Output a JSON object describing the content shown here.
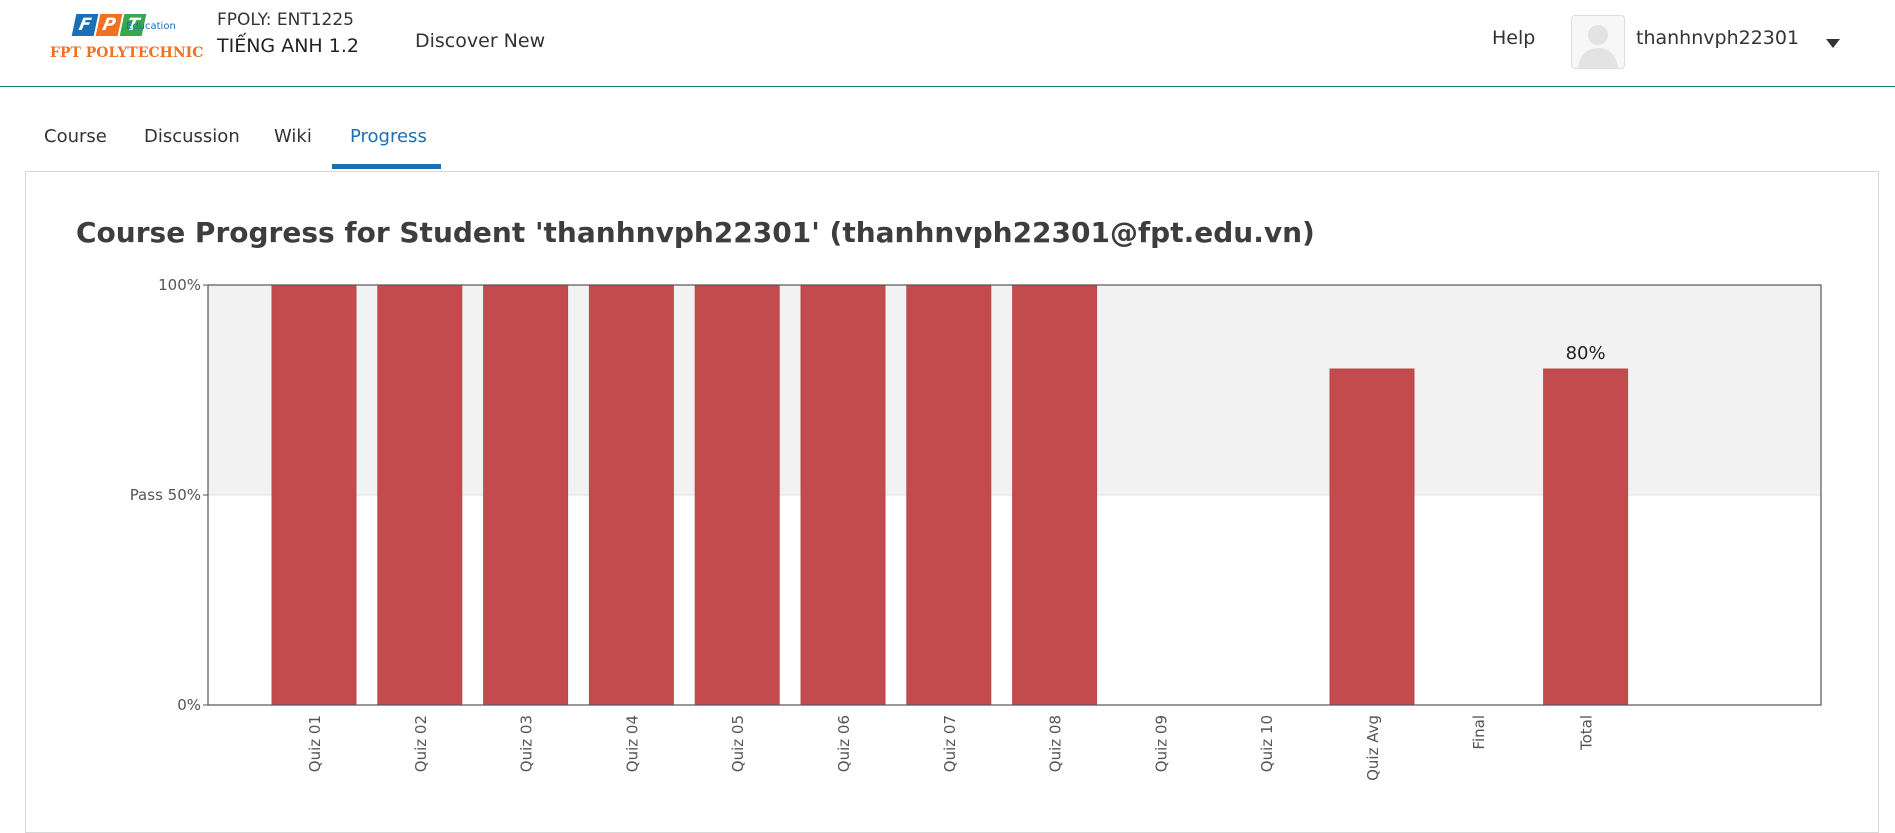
{
  "header": {
    "logo": {
      "letters": [
        "F",
        "P",
        "T"
      ],
      "letter_colors": [
        "#1a6fb5",
        "#f37021",
        "#3aa74c"
      ],
      "edu": "Education",
      "polytechnic": "FPT POLYTECHNIC"
    },
    "course_code": "FPOLY: ENT1225",
    "course_name": "TIẾNG ANH 1.2",
    "discover": "Discover New",
    "help": "Help",
    "username": "thanhnvph22301",
    "avatar_icon": "user-avatar-icon",
    "menu_icon": "caret-down-icon"
  },
  "tabs": [
    {
      "label": "Course",
      "active": false
    },
    {
      "label": "Discussion",
      "active": false
    },
    {
      "label": "Wiki",
      "active": false
    },
    {
      "label": "Progress",
      "active": true
    }
  ],
  "page_title": "Course Progress for Student 'thanhnvph22301' (thanhnvph22301@fpt.edu.vn)",
  "colors": {
    "accent": "#1a6fb5",
    "bar": "#c44b4d",
    "header_border": "#0e7c72",
    "pass_region": "#f2f2f2"
  },
  "chart_data": {
    "type": "bar",
    "categories": [
      "Quiz 01",
      "Quiz 02",
      "Quiz 03",
      "Quiz 04",
      "Quiz 05",
      "Quiz 06",
      "Quiz 07",
      "Quiz 08",
      "Quiz 09",
      "Quiz 10",
      "Quiz Avg",
      "Final",
      "Total"
    ],
    "values": [
      100,
      100,
      100,
      100,
      100,
      100,
      100,
      100,
      0,
      0,
      80,
      0,
      80
    ],
    "ylim": [
      0,
      100
    ],
    "yticks": [
      {
        "value": 0,
        "label": "0%"
      },
      {
        "value": 50,
        "label": "Pass 50%"
      },
      {
        "value": 100,
        "label": "100%"
      }
    ],
    "pass_threshold": 50,
    "annotations": [
      {
        "category": "Total",
        "label": "80%"
      }
    ],
    "grid": false
  }
}
